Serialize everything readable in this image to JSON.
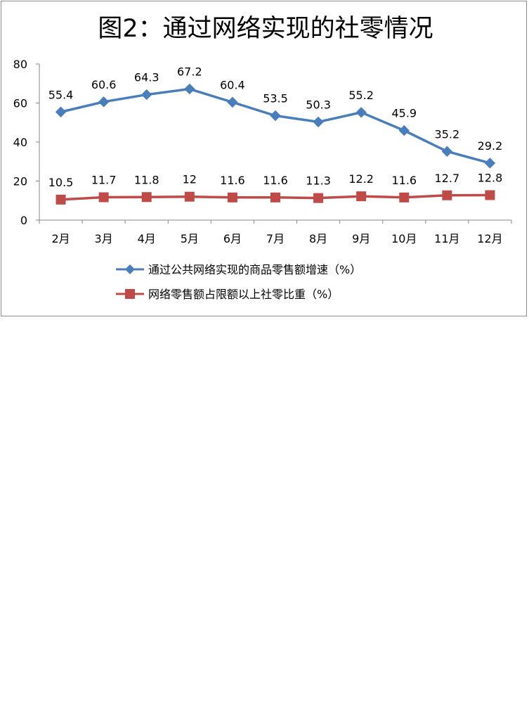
{
  "chart_data": {
    "type": "line",
    "title": "图2：通过网络实现的社零情况",
    "categories": [
      "2月",
      "3月",
      "4月",
      "5月",
      "6月",
      "7月",
      "8月",
      "9月",
      "10月",
      "11月",
      "12月"
    ],
    "series": [
      {
        "name": "通过公共网络实现的商品零售额增速（%）",
        "values": [
          55.4,
          60.6,
          64.3,
          67.2,
          60.4,
          53.5,
          50.3,
          55.2,
          45.9,
          35.2,
          29.2
        ],
        "labels": [
          "55.4",
          "60.6",
          "64.3",
          "67.2",
          "60.4",
          "53.5",
          "50.3",
          "55.2",
          "45.9",
          "35.2",
          "29.2"
        ],
        "color": "#4a7ebb",
        "marker": "diamond"
      },
      {
        "name": "网络零售额占限额以上社零比重（%）",
        "values": [
          10.5,
          11.7,
          11.8,
          12,
          11.6,
          11.6,
          11.3,
          12.2,
          11.6,
          12.7,
          12.8
        ],
        "labels": [
          "10.5",
          "11.7",
          "11.8",
          "12",
          "11.6",
          "11.6",
          "11.3",
          "12.2",
          "11.6",
          "12.7",
          "12.8"
        ],
        "color": "#be4b48",
        "marker": "square"
      }
    ],
    "ylim": [
      0,
      80
    ],
    "yticks": [
      "0",
      "20",
      "40",
      "60",
      "80"
    ],
    "grid": false,
    "legend": "bottom"
  }
}
